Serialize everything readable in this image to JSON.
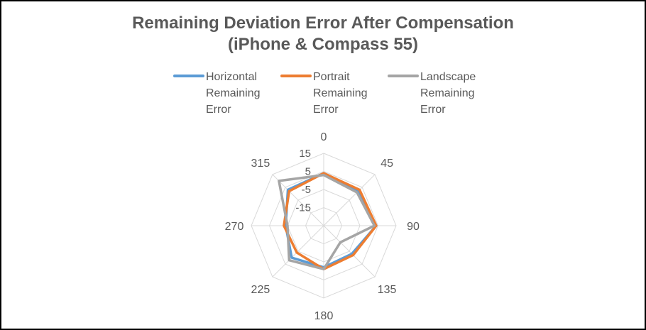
{
  "chart_data": {
    "type": "radar",
    "title_lines": [
      "Remaining Deviation Error After Compensation",
      "(iPhone & Compass 55)"
    ],
    "categories": [
      "0",
      "45",
      "90",
      "135",
      "180",
      "225",
      "270",
      "315"
    ],
    "radial_ticks": [
      "15",
      "5",
      "-5",
      "-15"
    ],
    "radial_range": [
      -25,
      15
    ],
    "grid": true,
    "legend_position": "top",
    "series": [
      {
        "name": "Horizontal Remaining Error",
        "legend_lines": [
          "Horizontal",
          "Remaining",
          "Error"
        ],
        "color": "#5B9BD5",
        "values": [
          4,
          2,
          4,
          -3,
          -2,
          0,
          -4,
          3
        ]
      },
      {
        "name": "Portrait Remaining Error",
        "legend_lines": [
          "Portrait",
          "Remaining",
          "Error"
        ],
        "color": "#ED7D31",
        "values": [
          4,
          3,
          4,
          -2,
          -1,
          -4,
          -3,
          2
        ]
      },
      {
        "name": "Landscape Remaining Error",
        "legend_lines": [
          "Landscape",
          "Remaining",
          "Error"
        ],
        "color": "#A5A5A5",
        "values": [
          3,
          1,
          3,
          -12,
          -1,
          2,
          -5,
          10
        ]
      }
    ]
  }
}
